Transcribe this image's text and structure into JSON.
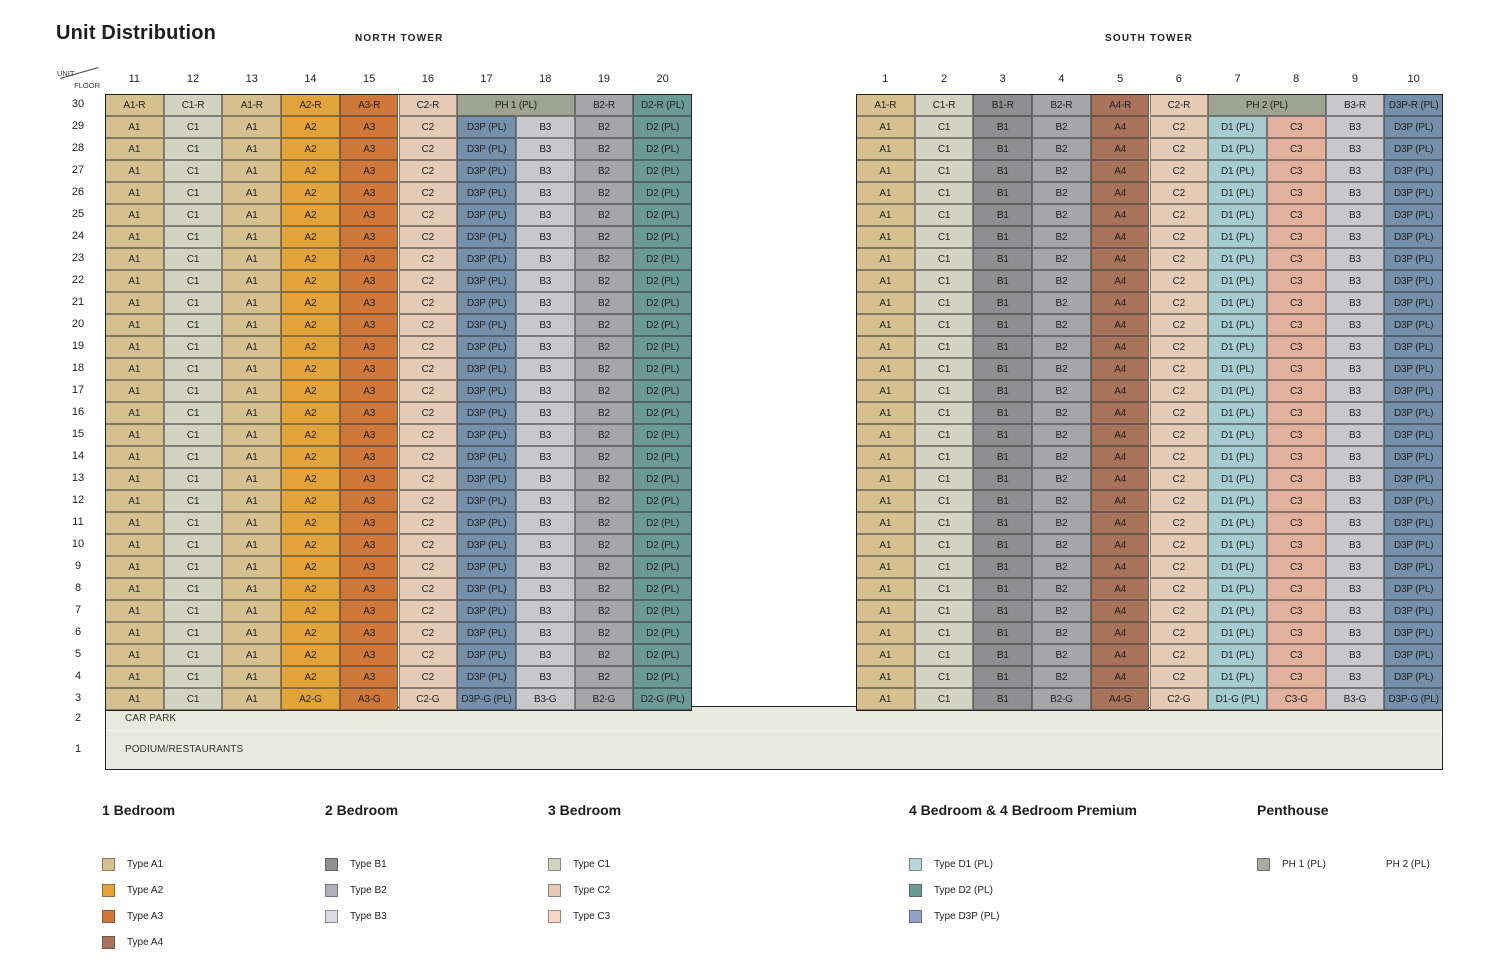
{
  "title": "Unit Distribution",
  "corner": {
    "unit": "UNIT",
    "floor": "FLOOR"
  },
  "towers": [
    {
      "name": "NORTH TOWER",
      "units": [
        "11",
        "12",
        "13",
        "14",
        "15",
        "16",
        "17",
        "18",
        "19",
        "20"
      ],
      "rows": [
        {
          "floor": "30",
          "cells": [
            [
              "A1-R",
              "A1"
            ],
            [
              "C1-R",
              "C1"
            ],
            [
              "A1-R",
              "A1"
            ],
            [
              "A2-R",
              "A2"
            ],
            [
              "A3-R",
              "A3"
            ],
            [
              "C2-R",
              "C2"
            ],
            [
              "PH 1 (PL)",
              "PH",
              2
            ],
            [
              "B2-R",
              "B2"
            ],
            [
              "D2-R (PL)",
              "D2"
            ]
          ]
        },
        {
          "floor": "29",
          "base": [
            "A1",
            "C1",
            "A1",
            "A2",
            "A3",
            "C2",
            "D3P (PL)",
            "B3",
            "B2",
            "D2 (PL)"
          ]
        },
        {
          "floor": "28",
          "base": [
            "A1",
            "C1",
            "A1",
            "A2",
            "A3",
            "C2",
            "D3P (PL)",
            "B3",
            "B2",
            "D2 (PL)"
          ]
        },
        {
          "floor": "27",
          "base": [
            "A1",
            "C1",
            "A1",
            "A2",
            "A3",
            "C2",
            "D3P (PL)",
            "B3",
            "B2",
            "D2 (PL)"
          ]
        },
        {
          "floor": "26",
          "base": [
            "A1",
            "C1",
            "A1",
            "A2",
            "A3",
            "C2",
            "D3P (PL)",
            "B3",
            "B2",
            "D2 (PL)"
          ]
        },
        {
          "floor": "25",
          "base": [
            "A1",
            "C1",
            "A1",
            "A2",
            "A3",
            "C2",
            "D3P (PL)",
            "B3",
            "B2",
            "D2 (PL)"
          ]
        },
        {
          "floor": "24",
          "base": [
            "A1",
            "C1",
            "A1",
            "A2",
            "A3",
            "C2",
            "D3P (PL)",
            "B3",
            "B2",
            "D2 (PL)"
          ]
        },
        {
          "floor": "23",
          "base": [
            "A1",
            "C1",
            "A1",
            "A2",
            "A3",
            "C2",
            "D3P (PL)",
            "B3",
            "B2",
            "D2 (PL)"
          ]
        },
        {
          "floor": "22",
          "base": [
            "A1",
            "C1",
            "A1",
            "A2",
            "A3",
            "C2",
            "D3P (PL)",
            "B3",
            "B2",
            "D2 (PL)"
          ]
        },
        {
          "floor": "21",
          "base": [
            "A1",
            "C1",
            "A1",
            "A2",
            "A3",
            "C2",
            "D3P (PL)",
            "B3",
            "B2",
            "D2 (PL)"
          ]
        },
        {
          "floor": "20",
          "base": [
            "A1",
            "C1",
            "A1",
            "A2",
            "A3",
            "C2",
            "D3P (PL)",
            "B3",
            "B2",
            "D2 (PL)"
          ]
        },
        {
          "floor": "19",
          "base": [
            "A1",
            "C1",
            "A1",
            "A2",
            "A3",
            "C2",
            "D3P (PL)",
            "B3",
            "B2",
            "D2 (PL)"
          ]
        },
        {
          "floor": "18",
          "base": [
            "A1",
            "C1",
            "A1",
            "A2",
            "A3",
            "C2",
            "D3P (PL)",
            "B3",
            "B2",
            "D2 (PL)"
          ]
        },
        {
          "floor": "17",
          "base": [
            "A1",
            "C1",
            "A1",
            "A2",
            "A3",
            "C2",
            "D3P (PL)",
            "B3",
            "B2",
            "D2 (PL)"
          ]
        },
        {
          "floor": "16",
          "base": [
            "A1",
            "C1",
            "A1",
            "A2",
            "A3",
            "C2",
            "D3P (PL)",
            "B3",
            "B2",
            "D2 (PL)"
          ]
        },
        {
          "floor": "15",
          "base": [
            "A1",
            "C1",
            "A1",
            "A2",
            "A3",
            "C2",
            "D3P (PL)",
            "B3",
            "B2",
            "D2 (PL)"
          ]
        },
        {
          "floor": "14",
          "base": [
            "A1",
            "C1",
            "A1",
            "A2",
            "A3",
            "C2",
            "D3P (PL)",
            "B3",
            "B2",
            "D2 (PL)"
          ]
        },
        {
          "floor": "13",
          "base": [
            "A1",
            "C1",
            "A1",
            "A2",
            "A3",
            "C2",
            "D3P (PL)",
            "B3",
            "B2",
            "D2 (PL)"
          ]
        },
        {
          "floor": "12",
          "base": [
            "A1",
            "C1",
            "A1",
            "A2",
            "A3",
            "C2",
            "D3P (PL)",
            "B3",
            "B2",
            "D2 (PL)"
          ]
        },
        {
          "floor": "11",
          "base": [
            "A1",
            "C1",
            "A1",
            "A2",
            "A3",
            "C2",
            "D3P (PL)",
            "B3",
            "B2",
            "D2 (PL)"
          ]
        },
        {
          "floor": "10",
          "base": [
            "A1",
            "C1",
            "A1",
            "A2",
            "A3",
            "C2",
            "D3P (PL)",
            "B3",
            "B2",
            "D2 (PL)"
          ]
        },
        {
          "floor": "9",
          "base": [
            "A1",
            "C1",
            "A1",
            "A2",
            "A3",
            "C2",
            "D3P (PL)",
            "B3",
            "B2",
            "D2 (PL)"
          ]
        },
        {
          "floor": "8",
          "base": [
            "A1",
            "C1",
            "A1",
            "A2",
            "A3",
            "C2",
            "D3P (PL)",
            "B3",
            "B2",
            "D2 (PL)"
          ]
        },
        {
          "floor": "7",
          "base": [
            "A1",
            "C1",
            "A1",
            "A2",
            "A3",
            "C2",
            "D3P (PL)",
            "B3",
            "B2",
            "D2 (PL)"
          ]
        },
        {
          "floor": "6",
          "base": [
            "A1",
            "C1",
            "A1",
            "A2",
            "A3",
            "C2",
            "D3P (PL)",
            "B3",
            "B2",
            "D2 (PL)"
          ]
        },
        {
          "floor": "5",
          "base": [
            "A1",
            "C1",
            "A1",
            "A2",
            "A3",
            "C2",
            "D3P (PL)",
            "B3",
            "B2",
            "D2 (PL)"
          ]
        },
        {
          "floor": "4",
          "base": [
            "A1",
            "C1",
            "A1",
            "A2",
            "A3",
            "C2",
            "D3P (PL)",
            "B3",
            "B2",
            "D2 (PL)"
          ]
        },
        {
          "floor": "3",
          "cells": [
            [
              "A1",
              "A1"
            ],
            [
              "C1",
              "C1"
            ],
            [
              "A1",
              "A1"
            ],
            [
              "A2-G",
              "A2"
            ],
            [
              "A3-G",
              "A3"
            ],
            [
              "C2-G",
              "C2"
            ],
            [
              "D3P-G (PL)",
              "D3P"
            ],
            [
              "B3-G",
              "B3"
            ],
            [
              "B2-G",
              "B2"
            ],
            [
              "D2-G (PL)",
              "D2"
            ]
          ]
        }
      ]
    },
    {
      "name": "SOUTH TOWER",
      "units": [
        "1",
        "2",
        "3",
        "4",
        "5",
        "6",
        "7",
        "8",
        "9",
        "10"
      ],
      "rows": [
        {
          "floor": "30",
          "cells": [
            [
              "A1-R",
              "A1"
            ],
            [
              "C1-R",
              "C1"
            ],
            [
              "B1-R",
              "B1"
            ],
            [
              "B2-R",
              "B2"
            ],
            [
              "A4-R",
              "A4"
            ],
            [
              "C2-R",
              "C2"
            ],
            [
              "PH 2 (PL)",
              "PH",
              2
            ],
            [
              "B3-R",
              "B3"
            ],
            [
              "D3P-R (PL)",
              "D3P"
            ]
          ]
        },
        {
          "floor": "29",
          "base": [
            "A1",
            "C1",
            "B1",
            "B2",
            "A4",
            "C2",
            "D1 (PL)",
            "C3",
            "B3",
            "D3P (PL)"
          ]
        },
        {
          "floor": "28",
          "base": [
            "A1",
            "C1",
            "B1",
            "B2",
            "A4",
            "C2",
            "D1 (PL)",
            "C3",
            "B3",
            "D3P (PL)"
          ]
        },
        {
          "floor": "27",
          "base": [
            "A1",
            "C1",
            "B1",
            "B2",
            "A4",
            "C2",
            "D1 (PL)",
            "C3",
            "B3",
            "D3P (PL)"
          ]
        },
        {
          "floor": "26",
          "base": [
            "A1",
            "C1",
            "B1",
            "B2",
            "A4",
            "C2",
            "D1 (PL)",
            "C3",
            "B3",
            "D3P (PL)"
          ]
        },
        {
          "floor": "25",
          "base": [
            "A1",
            "C1",
            "B1",
            "B2",
            "A4",
            "C2",
            "D1 (PL)",
            "C3",
            "B3",
            "D3P (PL)"
          ]
        },
        {
          "floor": "24",
          "base": [
            "A1",
            "C1",
            "B1",
            "B2",
            "A4",
            "C2",
            "D1 (PL)",
            "C3",
            "B3",
            "D3P (PL)"
          ]
        },
        {
          "floor": "23",
          "base": [
            "A1",
            "C1",
            "B1",
            "B2",
            "A4",
            "C2",
            "D1 (PL)",
            "C3",
            "B3",
            "D3P (PL)"
          ]
        },
        {
          "floor": "22",
          "base": [
            "A1",
            "C1",
            "B1",
            "B2",
            "A4",
            "C2",
            "D1 (PL)",
            "C3",
            "B3",
            "D3P (PL)"
          ]
        },
        {
          "floor": "21",
          "base": [
            "A1",
            "C1",
            "B1",
            "B2",
            "A4",
            "C2",
            "D1 (PL)",
            "C3",
            "B3",
            "D3P (PL)"
          ]
        },
        {
          "floor": "20",
          "base": [
            "A1",
            "C1",
            "B1",
            "B2",
            "A4",
            "C2",
            "D1 (PL)",
            "C3",
            "B3",
            "D3P (PL)"
          ]
        },
        {
          "floor": "19",
          "base": [
            "A1",
            "C1",
            "B1",
            "B2",
            "A4",
            "C2",
            "D1 (PL)",
            "C3",
            "B3",
            "D3P (PL)"
          ]
        },
        {
          "floor": "18",
          "base": [
            "A1",
            "C1",
            "B1",
            "B2",
            "A4",
            "C2",
            "D1 (PL)",
            "C3",
            "B3",
            "D3P (PL)"
          ]
        },
        {
          "floor": "17",
          "base": [
            "A1",
            "C1",
            "B1",
            "B2",
            "A4",
            "C2",
            "D1 (PL)",
            "C3",
            "B3",
            "D3P (PL)"
          ]
        },
        {
          "floor": "16",
          "base": [
            "A1",
            "C1",
            "B1",
            "B2",
            "A4",
            "C2",
            "D1 (PL)",
            "C3",
            "B3",
            "D3P (PL)"
          ]
        },
        {
          "floor": "15",
          "base": [
            "A1",
            "C1",
            "B1",
            "B2",
            "A4",
            "C2",
            "D1 (PL)",
            "C3",
            "B3",
            "D3P (PL)"
          ]
        },
        {
          "floor": "14",
          "base": [
            "A1",
            "C1",
            "B1",
            "B2",
            "A4",
            "C2",
            "D1 (PL)",
            "C3",
            "B3",
            "D3P (PL)"
          ]
        },
        {
          "floor": "13",
          "base": [
            "A1",
            "C1",
            "B1",
            "B2",
            "A4",
            "C2",
            "D1 (PL)",
            "C3",
            "B3",
            "D3P (PL)"
          ]
        },
        {
          "floor": "12",
          "base": [
            "A1",
            "C1",
            "B1",
            "B2",
            "A4",
            "C2",
            "D1 (PL)",
            "C3",
            "B3",
            "D3P (PL)"
          ]
        },
        {
          "floor": "11",
          "base": [
            "A1",
            "C1",
            "B1",
            "B2",
            "A4",
            "C2",
            "D1 (PL)",
            "C3",
            "B3",
            "D3P (PL)"
          ]
        },
        {
          "floor": "10",
          "base": [
            "A1",
            "C1",
            "B1",
            "B2",
            "A4",
            "C2",
            "D1 (PL)",
            "C3",
            "B3",
            "D3P (PL)"
          ]
        },
        {
          "floor": "9",
          "base": [
            "A1",
            "C1",
            "B1",
            "B2",
            "A4",
            "C2",
            "D1 (PL)",
            "C3",
            "B3",
            "D3P (PL)"
          ]
        },
        {
          "floor": "8",
          "base": [
            "A1",
            "C1",
            "B1",
            "B2",
            "A4",
            "C2",
            "D1 (PL)",
            "C3",
            "B3",
            "D3P (PL)"
          ]
        },
        {
          "floor": "7",
          "base": [
            "A1",
            "C1",
            "B1",
            "B2",
            "A4",
            "C2",
            "D1 (PL)",
            "C3",
            "B3",
            "D3P (PL)"
          ]
        },
        {
          "floor": "6",
          "base": [
            "A1",
            "C1",
            "B1",
            "B2",
            "A4",
            "C2",
            "D1 (PL)",
            "C3",
            "B3",
            "D3P (PL)"
          ]
        },
        {
          "floor": "5",
          "base": [
            "A1",
            "C1",
            "B1",
            "B2",
            "A4",
            "C2",
            "D1 (PL)",
            "C3",
            "B3",
            "D3P (PL)"
          ]
        },
        {
          "floor": "4",
          "base": [
            "A1",
            "C1",
            "B1",
            "B2",
            "A4",
            "C2",
            "D1 (PL)",
            "C3",
            "B3",
            "D3P (PL)"
          ]
        },
        {
          "floor": "3",
          "cells": [
            [
              "A1",
              "A1"
            ],
            [
              "C1",
              "C1"
            ],
            [
              "B1",
              "B1"
            ],
            [
              "B2-G",
              "B2"
            ],
            [
              "A4-G",
              "A4"
            ],
            [
              "C2-G",
              "C2"
            ],
            [
              "D1-G (PL)",
              "D1"
            ],
            [
              "C3-G",
              "C3"
            ],
            [
              "B3-G",
              "B3"
            ],
            [
              "D3P-G (PL)",
              "D3P"
            ]
          ]
        }
      ]
    }
  ],
  "podium": [
    {
      "floor": "2",
      "label": "CAR PARK"
    },
    {
      "floor": "1",
      "label": "PODIUM/RESTAURANTS"
    }
  ],
  "colors": {
    "A1": "#d6c08f",
    "A2": "#e1a33a",
    "A3": "#d0773a",
    "A4": "#a8735a",
    "B1": "#8f8f91",
    "B2": "#a6a6aa",
    "B3": "#c8c8cc",
    "C1": "#d3d3c4",
    "C2": "#e5cbb5",
    "C3": "#e2b19d",
    "D1": "#a7ccd0",
    "D2": "#6c9a96",
    "D3P": "#7490ab",
    "PH": "#9fa391",
    "podium": "#e7eadc"
  },
  "legend": [
    {
      "heading": "1 Bedroom",
      "items": [
        {
          "label": "Type A1",
          "color": "#d6c08f"
        },
        {
          "label": "Type A2",
          "color": "#e1a33a"
        },
        {
          "label": "Type A3",
          "color": "#d0773a"
        },
        {
          "label": "Type A4",
          "color": "#a8735a"
        }
      ]
    },
    {
      "heading": "2 Bedroom",
      "items": [
        {
          "label": "Type B1",
          "color": "#8f8f91"
        },
        {
          "label": "Type B2",
          "color": "#b0b0b8"
        },
        {
          "label": "Type B3",
          "color": "#dcdce8"
        }
      ]
    },
    {
      "heading": "3 Bedroom",
      "items": [
        {
          "label": "Type C1",
          "color": "#d3d3c4"
        },
        {
          "label": "Type C2",
          "color": "#e5cbb5"
        },
        {
          "label": "Type C3",
          "color": "#f6d7c7"
        }
      ]
    },
    {
      "heading": "4 Bedroom & 4 Bedroom Premium",
      "items": [
        {
          "label": "Type D1 (PL)",
          "color": "#b8d5da"
        },
        {
          "label": "Type D2 (PL)",
          "color": "#6c9a96"
        },
        {
          "label": "Type D3P (PL)",
          "color": "#8ea3c6"
        }
      ]
    },
    {
      "heading": "Penthouse",
      "items": [
        {
          "label": "PH 1 (PL)",
          "label2": "PH 2 (PL)",
          "color": "#a9ab9c"
        }
      ]
    }
  ]
}
